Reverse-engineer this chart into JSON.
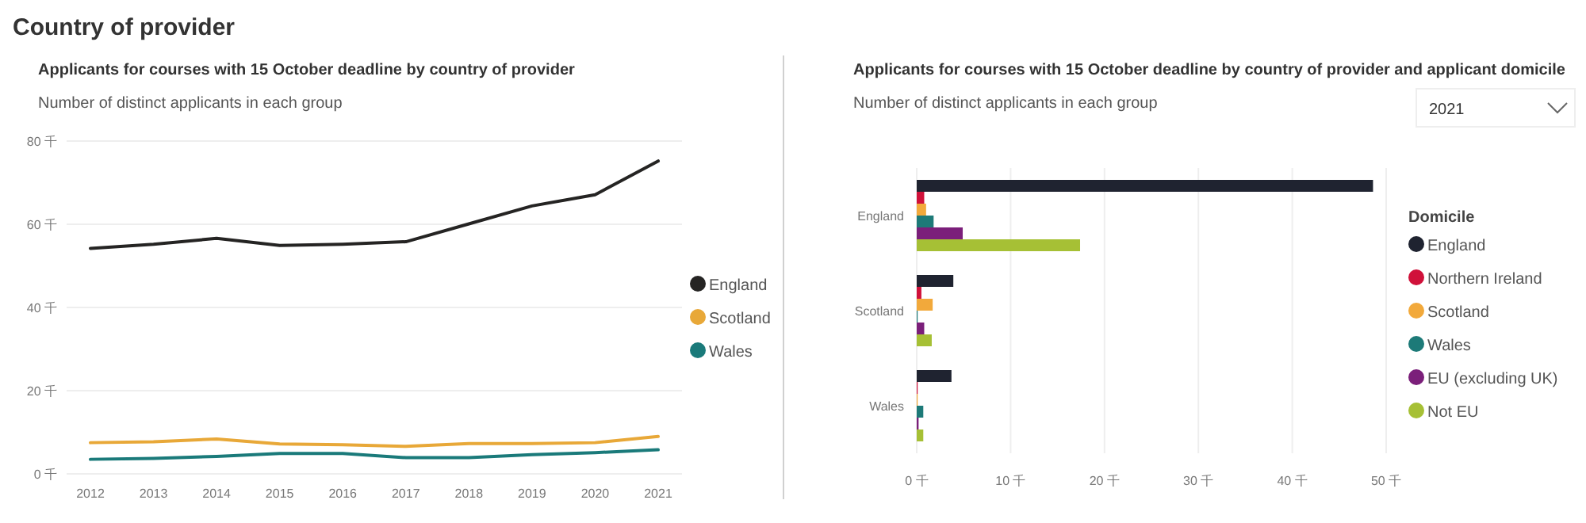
{
  "chart_data": [
    {
      "type": "line",
      "title": "Applicants for courses with 15 October deadline by country of provider",
      "subtitle": "Number of distinct applicants in each group",
      "annotations": [
        "Country of provider"
      ],
      "categories": [
        "2012",
        "2013",
        "2014",
        "2015",
        "2016",
        "2017",
        "2018",
        "2019",
        "2020",
        "2021"
      ],
      "series": [
        {
          "name": "England",
          "color": "#252423",
          "values": [
            54.2,
            55.2,
            56.6,
            54.9,
            55.2,
            55.8,
            60.1,
            64.4,
            67.1,
            75.2
          ]
        },
        {
          "name": "Scotland",
          "color": "#e8a838",
          "values": [
            7.5,
            7.7,
            8.4,
            7.2,
            7.0,
            6.6,
            7.3,
            7.3,
            7.5,
            9.0
          ]
        },
        {
          "name": "Wales",
          "color": "#1a7a7a",
          "values": [
            3.5,
            3.7,
            4.2,
            4.9,
            4.9,
            3.9,
            3.9,
            4.6,
            5.1,
            5.8
          ]
        }
      ],
      "ylim": [
        0,
        80
      ],
      "yticks": [
        {
          "value": 0,
          "label": "0 千"
        },
        {
          "value": 20,
          "label": "20 千"
        },
        {
          "value": 40,
          "label": "40 千"
        },
        {
          "value": 60,
          "label": "60 千"
        },
        {
          "value": 80,
          "label": "80 千"
        }
      ],
      "grid": "y",
      "legend": "right"
    },
    {
      "type": "bar",
      "orientation": "horizontal",
      "title": "Applicants for courses with 15 October deadline by country of provider and applicant domicile",
      "subtitle": "Number of distinct applicants in each group",
      "annotations": [
        "2021"
      ],
      "legend_title": "Domicile",
      "categories": [
        "England",
        "Scotland",
        "Wales"
      ],
      "series": [
        {
          "name": "England",
          "color": "#1f2330",
          "values": [
            48.6,
            3.9,
            3.7
          ]
        },
        {
          "name": "Northern Ireland",
          "color": "#d0113a",
          "values": [
            0.8,
            0.5,
            0.1
          ]
        },
        {
          "name": "Scotland",
          "color": "#f2a93b",
          "values": [
            1.0,
            1.7,
            0.1
          ]
        },
        {
          "name": "Wales",
          "color": "#1d7a78",
          "values": [
            1.8,
            0.1,
            0.7
          ]
        },
        {
          "name": "EU (excluding UK)",
          "color": "#7b1f7a",
          "values": [
            4.9,
            0.8,
            0.2
          ]
        },
        {
          "name": "Not EU",
          "color": "#a6c035",
          "values": [
            17.4,
            1.6,
            0.7
          ]
        }
      ],
      "xlim": [
        0,
        50
      ],
      "xticks": [
        {
          "value": 0,
          "label": "0 千"
        },
        {
          "value": 10,
          "label": "10 千"
        },
        {
          "value": 20,
          "label": "20 千"
        },
        {
          "value": 30,
          "label": "30 千"
        },
        {
          "value": 40,
          "label": "40 千"
        },
        {
          "value": 50,
          "label": "50 千"
        }
      ],
      "grid": "x",
      "legend": "right"
    }
  ]
}
